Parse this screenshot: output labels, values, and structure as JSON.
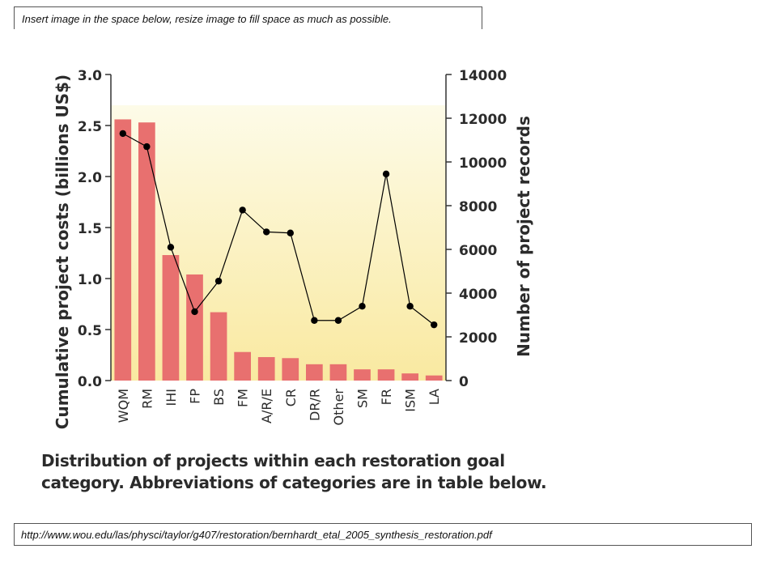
{
  "instruction": "Insert image in the space below, resize image to fill space as much as possible.",
  "source_url": "http://www.wou.edu/las/physci/taylor/g407/restoration/bernhardt_etal_2005_synthesis_restoration.pdf",
  "caption": "Distribution of projects within each restoration goal category. Abbreviations of categories are in table below.",
  "colors": {
    "bar": "#e8706f",
    "line": "#000000",
    "background_top": "#fdfbe8",
    "background_bottom": "#f9e9a0"
  },
  "chart_data": {
    "type": "bar",
    "categories": [
      "WQM",
      "RM",
      "IHI",
      "FP",
      "BS",
      "FM",
      "A/R/E",
      "CR",
      "DR/R",
      "Other",
      "SM",
      "FR",
      "ISM",
      "LA"
    ],
    "series": [
      {
        "values": [
          2.56,
          2.53,
          1.23,
          1.04,
          0.67,
          0.28,
          0.23,
          0.22,
          0.16,
          0.16,
          0.11,
          0.11,
          0.07,
          0.05
        ],
        "axis": "left",
        "type": "bar"
      },
      {
        "values": [
          11300,
          10700,
          6100,
          3150,
          4550,
          7800,
          6800,
          6750,
          2750,
          2750,
          3400,
          9450,
          3400,
          2550
        ],
        "axis": "right",
        "type": "line"
      }
    ],
    "ylabel": "Cumulative project costs (billions US$)",
    "ylabel_right": "Number of project records",
    "ylim": [
      0,
      3.0
    ],
    "ylim_right": [
      0,
      14000
    ],
    "yticks": [
      "0.0",
      "0.5",
      "1.0",
      "1.5",
      "2.0",
      "2.5",
      "3.0"
    ],
    "yticks_right": [
      "0",
      "2000",
      "4000",
      "6000",
      "8000",
      "10000",
      "12000",
      "14000"
    ],
    "grid": false
  }
}
